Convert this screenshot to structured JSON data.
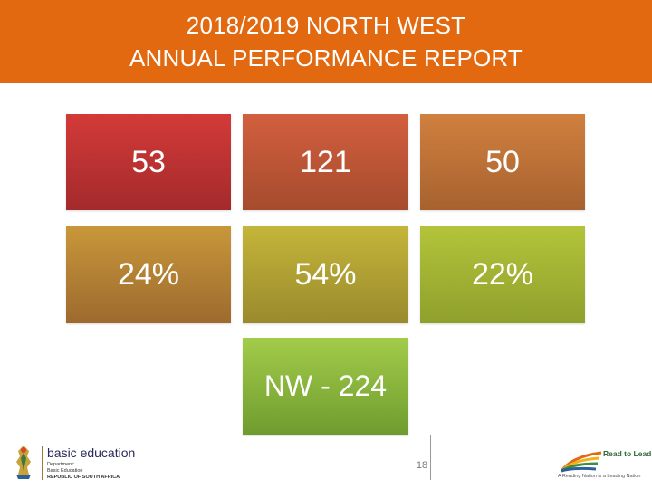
{
  "header": {
    "title_line1": "2018/2019 NORTH WEST",
    "title_line2": "ANNUAL PERFORMANCE REPORT",
    "background_color": "#e2690f"
  },
  "tiles": [
    {
      "value": "53",
      "color": "#c43633"
    },
    {
      "value": "121",
      "color": "#c55a3a"
    },
    {
      "value": "50",
      "color": "#c57a3b"
    },
    {
      "value": "24%",
      "color": "#bd8d36"
    },
    {
      "value": "54%",
      "color": "#b9a837"
    },
    {
      "value": "22%",
      "color": "#a7b836"
    },
    {
      "value": "NW - 224",
      "color": "#8fbc40"
    }
  ],
  "footer": {
    "page_number": "18",
    "dbe_logo": {
      "name": "basic education",
      "line1": "Department:",
      "line2": "Basic Education",
      "line3": "REPUBLIC OF SOUTH AFRICA"
    },
    "read_to_lead_logo": {
      "title": "Read to Lead",
      "tagline": "A Reading Nation is a Leading Nation"
    }
  }
}
